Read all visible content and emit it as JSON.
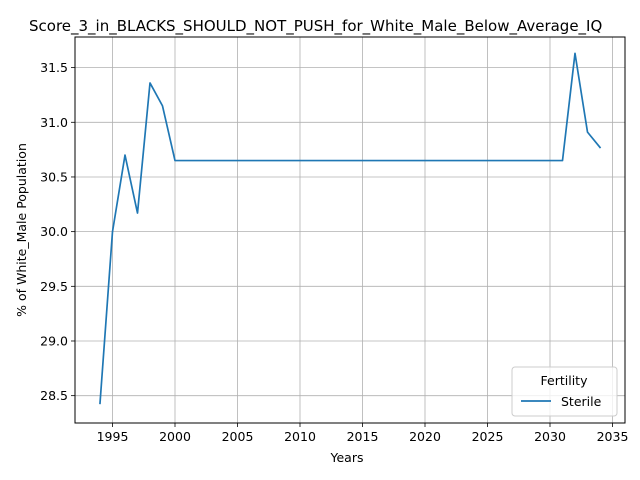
{
  "chart_data": {
    "type": "line",
    "title": "Score_3_in_BLACKS_SHOULD_NOT_PUSH_for_White_Male_Below_Average_IQ",
    "xlabel": "Years",
    "ylabel": "% of White_Male Population",
    "xlim": [
      1992.0,
      2036.0
    ],
    "ylim": [
      28.25,
      31.78
    ],
    "xticks": [
      1995,
      2000,
      2005,
      2010,
      2015,
      2020,
      2025,
      2030,
      2035
    ],
    "yticks": [
      28.5,
      29.0,
      29.5,
      30.0,
      30.5,
      31.0,
      31.5
    ],
    "grid": true,
    "legend": {
      "title": "Fertility",
      "placement": "lower-right"
    },
    "series": [
      {
        "name": "Sterile",
        "color": "#1f77b4",
        "x": [
          1994,
          1995,
          1996,
          1997,
          1998,
          1999,
          2000,
          2001,
          2002,
          2003,
          2004,
          2005,
          2006,
          2007,
          2008,
          2009,
          2010,
          2011,
          2012,
          2013,
          2014,
          2015,
          2016,
          2017,
          2018,
          2019,
          2020,
          2021,
          2022,
          2023,
          2024,
          2025,
          2026,
          2027,
          2028,
          2029,
          2030,
          2031,
          2032,
          2033,
          2034
        ],
        "y": [
          28.43,
          30.0,
          30.7,
          30.17,
          31.36,
          31.15,
          30.65,
          30.65,
          30.65,
          30.65,
          30.65,
          30.65,
          30.65,
          30.65,
          30.65,
          30.65,
          30.65,
          30.65,
          30.65,
          30.65,
          30.65,
          30.65,
          30.65,
          30.65,
          30.65,
          30.65,
          30.65,
          30.65,
          30.65,
          30.65,
          30.65,
          30.65,
          30.65,
          30.65,
          30.65,
          30.65,
          30.65,
          30.65,
          31.63,
          30.91,
          30.77
        ]
      }
    ]
  }
}
